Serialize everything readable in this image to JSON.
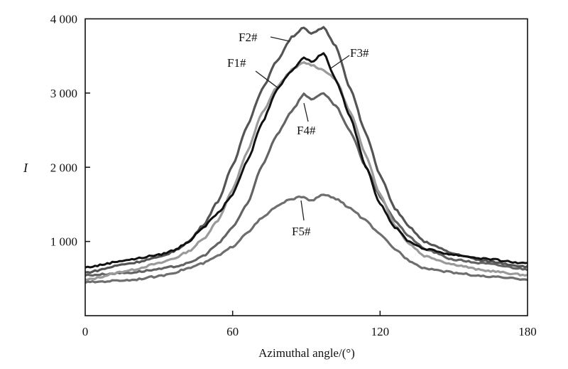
{
  "chart_data": {
    "type": "line",
    "title": "",
    "xlabel": "Azimuthal angle/(°)",
    "ylabel": "I",
    "xlim": [
      0,
      180
    ],
    "ylim": [
      0,
      4000
    ],
    "xticks": [
      0,
      60,
      120,
      180
    ],
    "xtick_labels": [
      "0",
      "60",
      "120",
      "180"
    ],
    "yticks": [
      1000,
      2000,
      3000,
      4000
    ],
    "ytick_labels": [
      "1 000",
      "2 000",
      "3 000",
      "4 000"
    ],
    "grid": false,
    "legend": "inline leader-line labels",
    "x": [
      0,
      18,
      30,
      36,
      42,
      48,
      54,
      60,
      66,
      72,
      78,
      84,
      89,
      92,
      97,
      102,
      108,
      114,
      120,
      126,
      132,
      138,
      150,
      162,
      180
    ],
    "series": [
      {
        "name": "F1#",
        "color": "#9a9a9a",
        "values": [
          480,
          610,
          705,
          770,
          865,
          1030,
          1285,
          1700,
          2215,
          2730,
          3080,
          3310,
          3410,
          3380,
          3310,
          3180,
          2730,
          2185,
          1635,
          1220,
          965,
          805,
          690,
          610,
          545
        ]
      },
      {
        "name": "F2#",
        "color": "#545454",
        "values": [
          580,
          705,
          785,
          865,
          995,
          1220,
          1540,
          2020,
          2570,
          3050,
          3435,
          3750,
          3890,
          3795,
          3880,
          3630,
          3050,
          2470,
          1895,
          1445,
          1190,
          995,
          835,
          740,
          660
        ]
      },
      {
        "name": "F3#",
        "color": "#111111",
        "values": [
          650,
          755,
          820,
          880,
          995,
          1190,
          1380,
          1635,
          2085,
          2600,
          3050,
          3305,
          3480,
          3420,
          3540,
          3180,
          2665,
          2020,
          1510,
          1190,
          995,
          900,
          820,
          770,
          700
        ]
      },
      {
        "name": "F4#",
        "color": "#636363",
        "values": [
          545,
          580,
          625,
          660,
          705,
          805,
          965,
          1190,
          1510,
          2020,
          2440,
          2760,
          2985,
          2920,
          2990,
          2825,
          2470,
          2020,
          1605,
          1285,
          1060,
          900,
          755,
          705,
          625
        ]
      },
      {
        "name": "F5#",
        "color": "#6e6e6e",
        "values": [
          450,
          480,
          530,
          580,
          640,
          705,
          805,
          930,
          1125,
          1315,
          1475,
          1575,
          1605,
          1545,
          1635,
          1575,
          1445,
          1285,
          1090,
          900,
          740,
          640,
          580,
          530,
          490
        ]
      }
    ]
  }
}
